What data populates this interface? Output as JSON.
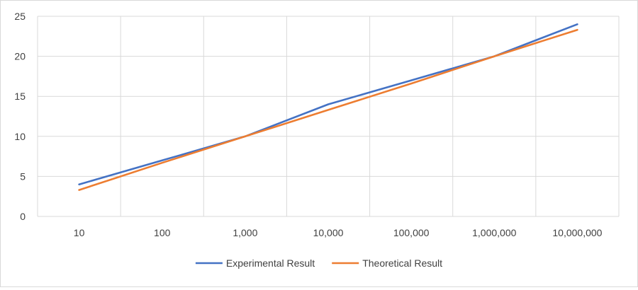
{
  "chart_data": {
    "type": "line",
    "title": "",
    "xlabel": "",
    "ylabel": "",
    "categories": [
      "10",
      "100",
      "1,000",
      "10,000",
      "100,000",
      "1,000,000",
      "10,000,000"
    ],
    "yticks": [
      "0",
      "5",
      "10",
      "15",
      "20",
      "25"
    ],
    "ylim": [
      0,
      25
    ],
    "grid": true,
    "legend_position": "bottom",
    "series": [
      {
        "name": "Experimental Result",
        "color": "#4472c4",
        "values": [
          4,
          7,
          10,
          14,
          17,
          20,
          24
        ]
      },
      {
        "name": "Theoretical Result",
        "color": "#ed7d31",
        "values": [
          3.3,
          6.7,
          10,
          13.3,
          16.6,
          20,
          23.3
        ]
      }
    ]
  }
}
